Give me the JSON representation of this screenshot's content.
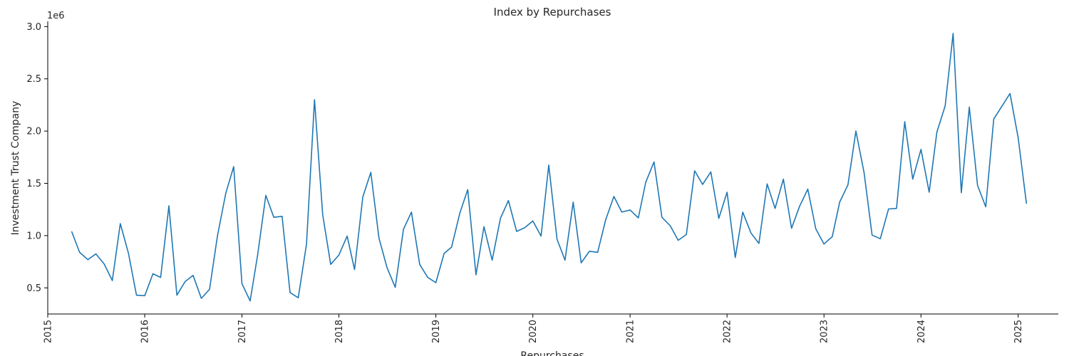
{
  "chart_data": {
    "type": "line",
    "title": "Index by Repurchases",
    "xlabel": "Repurchases",
    "ylabel": "Investment Trust Company",
    "y_scale_label": "1e6",
    "xlim": [
      "2015-01-01",
      "2025-06-01"
    ],
    "ylim": [
      250000,
      3050000
    ],
    "x_ticks": [
      {
        "date": "2015-01-01",
        "label": "2015"
      },
      {
        "date": "2016-01-01",
        "label": "2016"
      },
      {
        "date": "2017-01-01",
        "label": "2017"
      },
      {
        "date": "2018-01-01",
        "label": "2018"
      },
      {
        "date": "2019-01-01",
        "label": "2019"
      },
      {
        "date": "2020-01-01",
        "label": "2020"
      },
      {
        "date": "2021-01-01",
        "label": "2021"
      },
      {
        "date": "2022-01-01",
        "label": "2022"
      },
      {
        "date": "2023-01-01",
        "label": "2023"
      },
      {
        "date": "2024-01-01",
        "label": "2024"
      },
      {
        "date": "2025-01-01",
        "label": "2025"
      }
    ],
    "y_ticks": [
      {
        "value": 500000,
        "label": "0.5"
      },
      {
        "value": 1000000,
        "label": "1.0"
      },
      {
        "value": 1500000,
        "label": "1.5"
      },
      {
        "value": 2000000,
        "label": "2.0"
      },
      {
        "value": 2500000,
        "label": "2.5"
      },
      {
        "value": 3000000,
        "label": "3.0"
      }
    ],
    "grid": false,
    "line_color": "#1f77b4",
    "series": [
      {
        "x": [
          "2015-04",
          "2015-05",
          "2015-06",
          "2015-07",
          "2015-08",
          "2015-09",
          "2015-10",
          "2015-11",
          "2015-12",
          "2016-01",
          "2016-02",
          "2016-03",
          "2016-04",
          "2016-05",
          "2016-06",
          "2016-07",
          "2016-08",
          "2016-09",
          "2016-10",
          "2016-11",
          "2016-12",
          "2017-01",
          "2017-02",
          "2017-03",
          "2017-04",
          "2017-05",
          "2017-06",
          "2017-07",
          "2017-08",
          "2017-09",
          "2017-10",
          "2017-11",
          "2017-12",
          "2018-01",
          "2018-02",
          "2018-03",
          "2018-04",
          "2018-05",
          "2018-06",
          "2018-07",
          "2018-08",
          "2018-09",
          "2018-10",
          "2018-11",
          "2018-12",
          "2019-01",
          "2019-02",
          "2019-03",
          "2019-04",
          "2019-05",
          "2019-06",
          "2019-07",
          "2019-08",
          "2019-09",
          "2019-10",
          "2019-11",
          "2019-12",
          "2020-01",
          "2020-02",
          "2020-03",
          "2020-04",
          "2020-05",
          "2020-06",
          "2020-07",
          "2020-08",
          "2020-09",
          "2020-10",
          "2020-11",
          "2020-12",
          "2021-01",
          "2021-02",
          "2021-03",
          "2021-04",
          "2021-05",
          "2021-06",
          "2021-07",
          "2021-08",
          "2021-09",
          "2021-10",
          "2021-11",
          "2021-12",
          "2022-01",
          "2022-02",
          "2022-03",
          "2022-04",
          "2022-05",
          "2022-06",
          "2022-07",
          "2022-08",
          "2022-09",
          "2022-10",
          "2022-11",
          "2022-12",
          "2023-01",
          "2023-02",
          "2023-03",
          "2023-04",
          "2023-05",
          "2023-06",
          "2023-07",
          "2023-08",
          "2023-09",
          "2023-10",
          "2023-11",
          "2023-12",
          "2024-01",
          "2024-02",
          "2024-03",
          "2024-04",
          "2024-05",
          "2024-06",
          "2024-07",
          "2024-08",
          "2024-09",
          "2024-10",
          "2024-11",
          "2024-12",
          "2025-01",
          "2025-02"
        ],
        "values": [
          1040000,
          840000,
          770000,
          825000,
          730000,
          570000,
          1115000,
          830000,
          430000,
          425000,
          635000,
          600000,
          1285000,
          430000,
          560000,
          620000,
          400000,
          485000,
          1000000,
          1405000,
          1660000,
          540000,
          375000,
          815000,
          1385000,
          1175000,
          1185000,
          455000,
          405000,
          920000,
          2300000,
          1200000,
          725000,
          815000,
          995000,
          675000,
          1370000,
          1605000,
          975000,
          695000,
          505000,
          1060000,
          1225000,
          725000,
          600000,
          550000,
          830000,
          890000,
          1215000,
          1440000,
          625000,
          1085000,
          765000,
          1165000,
          1335000,
          1040000,
          1075000,
          1140000,
          995000,
          1675000,
          965000,
          765000,
          1320000,
          740000,
          850000,
          840000,
          1150000,
          1375000,
          1225000,
          1245000,
          1170000,
          1510000,
          1705000,
          1175000,
          1095000,
          955000,
          1010000,
          1620000,
          1490000,
          1610000,
          1165000,
          1415000,
          790000,
          1225000,
          1025000,
          925000,
          1495000,
          1260000,
          1540000,
          1070000,
          1280000,
          1445000,
          1065000,
          920000,
          990000,
          1320000,
          1485000,
          2000000,
          1600000,
          1005000,
          970000,
          1255000,
          1260000,
          2090000,
          1540000,
          1825000,
          1415000,
          1990000,
          2240000,
          2935000,
          1410000,
          2230000,
          1480000,
          1275000,
          2115000,
          2240000,
          2360000,
          1935000,
          1305000
        ]
      }
    ]
  }
}
